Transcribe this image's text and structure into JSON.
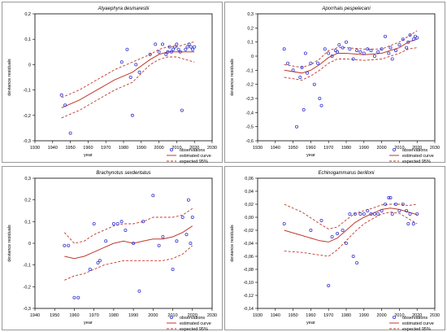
{
  "colors": {
    "observation": "#3a3ad0",
    "curve": "#c0392b",
    "frame": "#000000",
    "panel_border": "#9a9a9a"
  },
  "legend_labels": {
    "observations": "observations",
    "estimated": "estimated curve",
    "expected": "expected 95%"
  },
  "chart_data": [
    {
      "type": "scatter",
      "title": "Atyaephyra desmarestii",
      "xlabel": "year",
      "ylabel": "deviance residuals",
      "xlim": [
        1930,
        2030
      ],
      "ylim": [
        -0.3,
        0.2
      ],
      "xticks": [
        1930,
        1940,
        1950,
        1960,
        1970,
        1980,
        1990,
        2000,
        2010,
        2020,
        2030
      ],
      "yticks": [
        -0.3,
        -0.2,
        -0.1,
        0,
        0.1,
        0.2
      ],
      "ytick_labels": [
        "-0,3",
        "-0,2",
        "-0,1",
        "0",
        "0,1",
        "0,2"
      ],
      "legend": "bottom-right",
      "observations": {
        "x": [
          1945,
          1947,
          1950,
          1979,
          1982,
          1984,
          1985,
          1987,
          1989,
          1995,
          1998,
          2000,
          2002,
          2004,
          2005,
          2006,
          2007,
          2008,
          2009,
          2010,
          2011,
          2012,
          2013,
          2015,
          2016,
          2017,
          2018,
          2019,
          2020
        ],
        "y": [
          -0.12,
          -0.16,
          -0.27,
          0.01,
          0.06,
          -0.05,
          -0.2,
          0.0,
          -0.03,
          0.04,
          0.08,
          0.05,
          0.08,
          0.04,
          0.05,
          0.07,
          0.05,
          0.06,
          0.07,
          0.08,
          0.06,
          0.05,
          -0.18,
          0.06,
          0.07,
          0.08,
          0.07,
          0.06,
          0.07
        ]
      },
      "estimated_curve": {
        "x": [
          1945,
          1955,
          1965,
          1975,
          1985,
          1995,
          2000,
          2005,
          2010,
          2015,
          2020
        ],
        "y": [
          -0.17,
          -0.14,
          -0.1,
          -0.06,
          -0.03,
          0.02,
          0.04,
          0.05,
          0.05,
          0.05,
          0.05
        ]
      },
      "upper_95": {
        "x": [
          1945,
          1955,
          1965,
          1975,
          1985,
          1995,
          2000,
          2005,
          2010,
          2015,
          2020
        ],
        "y": [
          -0.13,
          -0.1,
          -0.06,
          -0.02,
          0.01,
          0.04,
          0.06,
          0.07,
          0.07,
          0.08,
          0.09
        ]
      },
      "lower_95": {
        "x": [
          1945,
          1955,
          1965,
          1975,
          1985,
          1995,
          2000,
          2005,
          2010,
          2015,
          2020
        ],
        "y": [
          -0.21,
          -0.18,
          -0.14,
          -0.1,
          -0.07,
          0.0,
          0.02,
          0.03,
          0.03,
          0.02,
          0.01
        ]
      }
    },
    {
      "type": "scatter",
      "title": "Aporrhais pespelecani",
      "xlabel": "year",
      "ylabel": "deviance residuals",
      "xlim": [
        1930,
        2030
      ],
      "ylim": [
        -0.6,
        0.3
      ],
      "xticks": [
        1930,
        1940,
        1950,
        1960,
        1970,
        1980,
        1990,
        2000,
        2010,
        2020,
        2030
      ],
      "yticks": [
        -0.6,
        -0.5,
        -0.4,
        -0.3,
        -0.2,
        -0.1,
        0,
        0.1,
        0.2,
        0.3
      ],
      "ytick_labels": [
        "-0,6",
        "-0,5",
        "-0,4",
        "-0,3",
        "-0,2",
        "-0,1",
        "0",
        "0,1",
        "0,2",
        "0,3"
      ],
      "legend": "bottom-right",
      "observations": {
        "x": [
          1945,
          1947,
          1950,
          1952,
          1954,
          1955,
          1956,
          1957,
          1958,
          1960,
          1962,
          1964,
          1965,
          1966,
          1968,
          1970,
          1972,
          1974,
          1975,
          1976,
          1978,
          1980,
          1982,
          1984,
          1986,
          1988,
          1990,
          1992,
          1994,
          1996,
          1998,
          2000,
          2002,
          2004,
          2005,
          2006,
          2008,
          2010,
          2012,
          2014,
          2015,
          2016,
          2018,
          2019,
          2020
        ],
        "y": [
          0.05,
          -0.05,
          -0.1,
          -0.5,
          -0.15,
          -0.08,
          -0.38,
          0.02,
          -0.12,
          -0.05,
          -0.2,
          -0.05,
          -0.3,
          -0.35,
          0.05,
          0.02,
          0.0,
          0.04,
          0.03,
          0.08,
          0.06,
          0.1,
          0.05,
          -0.02,
          0.04,
          0.03,
          0.02,
          0.05,
          0.04,
          0.0,
          0.03,
          0.05,
          0.14,
          0.02,
          0.06,
          -0.02,
          0.04,
          0.08,
          0.12,
          0.06,
          0.1,
          0.15,
          0.12,
          0.14,
          0.13
        ]
      },
      "estimated_curve": {
        "x": [
          1945,
          1955,
          1960,
          1965,
          1970,
          1975,
          1980,
          1990,
          2000,
          2010,
          2015,
          2020
        ],
        "y": [
          -0.1,
          -0.12,
          -0.1,
          -0.06,
          -0.01,
          0.02,
          0.02,
          0.01,
          0.02,
          0.06,
          0.1,
          0.12
        ]
      },
      "upper_95": {
        "x": [
          1945,
          1955,
          1960,
          1965,
          1970,
          1975,
          1980,
          1990,
          2000,
          2010,
          2015,
          2020
        ],
        "y": [
          -0.06,
          -0.08,
          -0.06,
          -0.02,
          0.04,
          0.06,
          0.06,
          0.05,
          0.05,
          0.1,
          0.14,
          0.18
        ]
      },
      "lower_95": {
        "x": [
          1945,
          1955,
          1960,
          1965,
          1970,
          1975,
          1980,
          1990,
          2000,
          2010,
          2015,
          2020
        ],
        "y": [
          -0.15,
          -0.17,
          -0.14,
          -0.1,
          -0.05,
          -0.02,
          -0.02,
          -0.03,
          -0.02,
          0.02,
          0.05,
          0.06
        ]
      }
    },
    {
      "type": "scatter",
      "title": "Brachynotus sexdentatus",
      "xlabel": "year",
      "ylabel": "deviance residuals",
      "xlim": [
        1940,
        2030
      ],
      "ylim": [
        -0.3,
        0.3
      ],
      "xticks": [
        1940,
        1950,
        1960,
        1970,
        1980,
        1990,
        2000,
        2010,
        2020,
        2030
      ],
      "yticks": [
        -0.3,
        -0.2,
        -0.1,
        0,
        0.1,
        0.2,
        0.3
      ],
      "ytick_labels": [
        "-0,3",
        "-0,2",
        "-0,1",
        "0",
        "0,1",
        "0,2",
        "0,3"
      ],
      "legend": "bottom-right",
      "observations": {
        "x": [
          1955,
          1957,
          1960,
          1962,
          1968,
          1970,
          1972,
          1973,
          1976,
          1980,
          1982,
          1984,
          1986,
          1990,
          1993,
          1995,
          2000,
          2003,
          2005,
          2010,
          2012,
          2015,
          2017,
          2018,
          2019,
          2020
        ],
        "y": [
          -0.01,
          -0.01,
          -0.25,
          -0.25,
          -0.12,
          0.09,
          -0.09,
          -0.08,
          0.01,
          0.09,
          0.09,
          0.1,
          0.06,
          0.0,
          -0.22,
          0.1,
          0.22,
          -0.01,
          0.03,
          -0.12,
          0.01,
          0.12,
          0.04,
          0.2,
          0.0,
          0.12
        ]
      },
      "estimated_curve": {
        "x": [
          1955,
          1960,
          1965,
          1970,
          1975,
          1980,
          1985,
          1990,
          1995,
          2000,
          2005,
          2010,
          2015,
          2020
        ],
        "y": [
          -0.06,
          -0.07,
          -0.06,
          -0.04,
          -0.02,
          0.0,
          0.01,
          0.0,
          0.01,
          0.02,
          0.02,
          0.03,
          0.05,
          0.08
        ]
      },
      "upper_95": {
        "x": [
          1955,
          1960,
          1965,
          1970,
          1975,
          1980,
          1985,
          1990,
          1995,
          2000,
          2005,
          2010,
          2015,
          2020
        ],
        "y": [
          0.05,
          0.0,
          0.01,
          0.04,
          0.06,
          0.08,
          0.09,
          0.09,
          0.1,
          0.12,
          0.12,
          0.12,
          0.13,
          0.16
        ]
      },
      "lower_95": {
        "x": [
          1955,
          1960,
          1965,
          1970,
          1975,
          1980,
          1985,
          1990,
          1995,
          2000,
          2005,
          2010,
          2015,
          2020
        ],
        "y": [
          -0.17,
          -0.15,
          -0.14,
          -0.12,
          -0.1,
          -0.09,
          -0.08,
          -0.08,
          -0.08,
          -0.08,
          -0.08,
          -0.07,
          -0.05,
          -0.01
        ]
      }
    },
    {
      "type": "scatter",
      "title": "Echinogammarus berilloni",
      "xlabel": "year",
      "ylabel": "deviance residuals",
      "xlim": [
        1930,
        2030
      ],
      "ylim": [
        -0.14,
        0.06
      ],
      "xticks": [
        1930,
        1940,
        1950,
        1960,
        1970,
        1980,
        1990,
        2000,
        2010,
        2020,
        2030
      ],
      "yticks": [
        -0.14,
        -0.12,
        -0.1,
        -0.08,
        -0.06,
        -0.04,
        -0.02,
        0,
        0.02,
        0.04,
        0.06
      ],
      "ytick_labels": [
        "-0,14",
        "-0,12",
        "-0,10",
        "-0,08",
        "-0,06",
        "-0,04",
        "-0,02",
        "0,00",
        "0,02",
        "0,04",
        "0,06"
      ],
      "legend": "bottom-right",
      "observations": {
        "x": [
          1945,
          1960,
          1966,
          1970,
          1972,
          1975,
          1978,
          1980,
          1982,
          1984,
          1985,
          1986,
          1988,
          1990,
          1992,
          1994,
          1996,
          1998,
          2000,
          2002,
          2004,
          2005,
          2006,
          2008,
          2010,
          2012,
          2014,
          2015,
          2016,
          2018,
          2020
        ],
        "y": [
          -0.01,
          -0.02,
          -0.005,
          -0.105,
          -0.03,
          -0.025,
          -0.02,
          -0.04,
          0.005,
          -0.06,
          0.005,
          -0.07,
          0.005,
          0.005,
          0.01,
          0.005,
          0.005,
          0.005,
          0.01,
          0.02,
          0.03,
          0.03,
          0.005,
          0.02,
          0.01,
          0.02,
          0.01,
          -0.01,
          0.005,
          -0.01,
          0.005
        ]
      },
      "estimated_curve": {
        "x": [
          1945,
          1955,
          1965,
          1970,
          1975,
          1980,
          1985,
          1990,
          1995,
          2000,
          2005,
          2010,
          2015,
          2020
        ],
        "y": [
          -0.02,
          -0.028,
          -0.036,
          -0.038,
          -0.032,
          -0.02,
          -0.008,
          0.0,
          0.006,
          0.012,
          0.014,
          0.012,
          0.008,
          0.004
        ]
      },
      "upper_95": {
        "x": [
          1945,
          1955,
          1965,
          1970,
          1975,
          1980,
          1985,
          1990,
          1995,
          2000,
          2005,
          2010,
          2015,
          2020
        ],
        "y": [
          0.02,
          0.008,
          -0.01,
          -0.018,
          -0.015,
          -0.004,
          0.006,
          0.01,
          0.014,
          0.019,
          0.02,
          0.02,
          0.018,
          0.02
        ]
      },
      "lower_95": {
        "x": [
          1945,
          1955,
          1965,
          1970,
          1975,
          1980,
          1985,
          1990,
          1995,
          2000,
          2005,
          2010,
          2015,
          2020
        ],
        "y": [
          -0.052,
          -0.054,
          -0.058,
          -0.06,
          -0.05,
          -0.036,
          -0.022,
          -0.01,
          -0.002,
          0.005,
          0.008,
          0.006,
          -0.002,
          -0.01
        ]
      }
    }
  ]
}
